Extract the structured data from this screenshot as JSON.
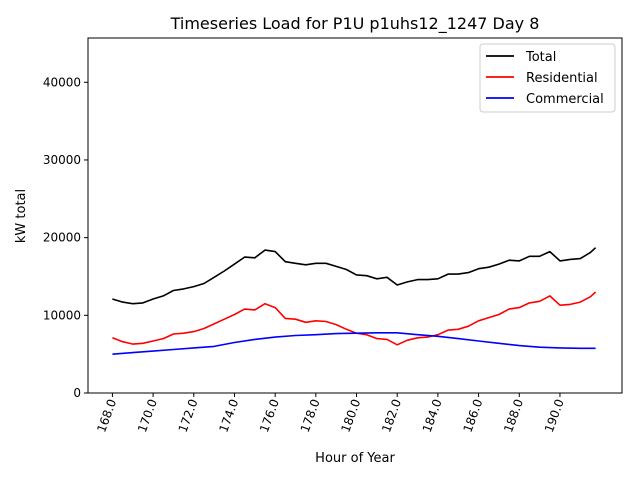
{
  "chart_data": {
    "type": "line",
    "title": "Timeseries Load for P1U p1uhs12_1247  Day 8",
    "xlabel": "Hour of Year",
    "ylabel": "kW total",
    "xlim": [
      166.8,
      193.05
    ],
    "ylim": [
      0,
      45700
    ],
    "xticks": [
      "168.0",
      "170.0",
      "172.0",
      "174.0",
      "176.0",
      "178.0",
      "180.0",
      "182.0",
      "184.0",
      "186.0",
      "188.0",
      "190.0"
    ],
    "xtick_values": [
      168,
      170,
      172,
      174,
      176,
      178,
      180,
      182,
      184,
      186,
      188,
      190
    ],
    "yticks": [
      "0",
      "10000",
      "20000",
      "30000",
      "40000"
    ],
    "ytick_values": [
      0,
      10000,
      20000,
      30000,
      40000
    ],
    "legend_position": "top-right",
    "grid": false,
    "series": [
      {
        "name": "Total",
        "color": "#000000",
        "x": [
          168,
          168.5,
          169,
          169.5,
          170,
          170.5,
          171,
          171.5,
          172,
          172.5,
          173,
          173.5,
          174,
          174.5,
          175,
          175.5,
          176,
          176.5,
          177,
          177.5,
          178,
          178.5,
          179,
          179.5,
          180,
          180.5,
          181,
          181.5,
          182,
          182.5,
          183,
          183.5,
          184,
          184.5,
          185,
          185.5,
          186,
          186.5,
          187,
          187.5,
          188,
          188.5,
          189,
          189.5,
          190,
          190.5,
          191,
          191.5,
          191.75
        ],
        "values": [
          12100,
          11700,
          11500,
          11600,
          12100,
          12500,
          13200,
          13400,
          13700,
          14100,
          14900,
          15700,
          16600,
          17500,
          17400,
          18400,
          18200,
          16900,
          16700,
          16500,
          16700,
          16700,
          16300,
          15900,
          15200,
          15100,
          14700,
          14900,
          13900,
          14300,
          14600,
          14600,
          14700,
          15300,
          15300,
          15500,
          16000,
          16200,
          16600,
          17100,
          17000,
          17600,
          17600,
          18200,
          17000,
          17200,
          17300,
          18100,
          18700
        ]
      },
      {
        "name": "Residential",
        "color": "#ff0000",
        "x": [
          168,
          168.5,
          169,
          169.5,
          170,
          170.5,
          171,
          171.5,
          172,
          172.5,
          173,
          173.5,
          174,
          174.5,
          175,
          175.5,
          176,
          176.5,
          177,
          177.5,
          178,
          178.5,
          179,
          179.5,
          180,
          180.5,
          181,
          181.5,
          182,
          182.5,
          183,
          183.5,
          184,
          184.5,
          185,
          185.5,
          186,
          186.5,
          187,
          187.5,
          188,
          188.5,
          189,
          189.5,
          190,
          190.5,
          191,
          191.5,
          191.75
        ],
        "values": [
          7100,
          6600,
          6300,
          6400,
          6700,
          7000,
          7600,
          7700,
          7900,
          8300,
          8900,
          9500,
          10100,
          10800,
          10700,
          11500,
          11000,
          9600,
          9500,
          9100,
          9300,
          9200,
          8800,
          8200,
          7700,
          7500,
          7000,
          6900,
          6200,
          6800,
          7100,
          7200,
          7500,
          8100,
          8200,
          8600,
          9300,
          9700,
          10100,
          10800,
          11000,
          11600,
          11800,
          12500,
          11300,
          11400,
          11700,
          12400,
          13000
        ]
      },
      {
        "name": "Commercial",
        "color": "#0000ff",
        "x": [
          168,
          169,
          170,
          171,
          172,
          173,
          174,
          175,
          176,
          177,
          178,
          179,
          180,
          181,
          182,
          183,
          184,
          185,
          186,
          187,
          188,
          189,
          190,
          191,
          191.75
        ],
        "values": [
          5000,
          5200,
          5400,
          5600,
          5800,
          6000,
          6500,
          6900,
          7200,
          7400,
          7500,
          7650,
          7700,
          7750,
          7750,
          7500,
          7300,
          7000,
          6700,
          6400,
          6100,
          5900,
          5800,
          5750,
          5750
        ]
      }
    ]
  }
}
